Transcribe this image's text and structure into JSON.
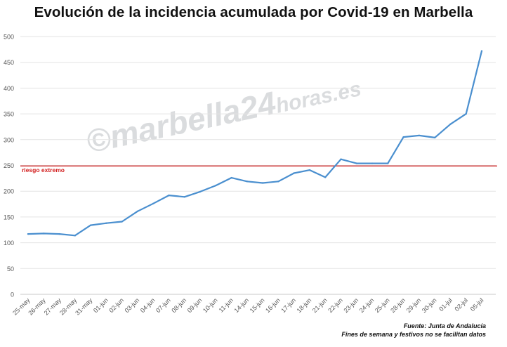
{
  "title": "Evolución de la incidencia acumulada por Covid-19 en Marbella",
  "watermark": {
    "main": "©marbella24",
    "sub": "horas.es"
  },
  "source": {
    "line1": "Fuente: Junta de Andalucía",
    "line2": "Fines de semana y festivos no se facilitan datos"
  },
  "colors": {
    "series": "#4a8fcf",
    "threshold": "#d11a1a",
    "grid": "#e3e3e3",
    "tick_text": "#555555"
  },
  "chart_data": {
    "type": "line",
    "title": "Evolución de la incidencia acumulada por Covid-19 en Marbella",
    "xlabel": "",
    "ylabel": "",
    "ylim": [
      0,
      500
    ],
    "yticks": [
      0,
      50,
      100,
      150,
      200,
      250,
      300,
      350,
      400,
      450,
      500
    ],
    "grid": true,
    "legend": "none",
    "categories": [
      "25-may",
      "26-may",
      "27-may",
      "28-may",
      "31-may",
      "01-jun",
      "02-jun",
      "03-jun",
      "04-jun",
      "07-jun",
      "08-jun",
      "09-jun",
      "10-jun",
      "11-jun",
      "14-jun",
      "15-jun",
      "16-jun",
      "17-jun",
      "18-jun",
      "21-jun",
      "22-jun",
      "23-jun",
      "24-jun",
      "25-jun",
      "28-jun",
      "29-jun",
      "30-jun",
      "01-jul",
      "02-jul",
      "05-jul"
    ],
    "series": [
      {
        "values": [
          117,
          118,
          117,
          114,
          134,
          138,
          141,
          161,
          176,
          192,
          189,
          199,
          211,
          226,
          219,
          216,
          219,
          235,
          241,
          227,
          262,
          254,
          254,
          254,
          305,
          308,
          304,
          330,
          350,
          472
        ]
      }
    ],
    "threshold": {
      "value": 249,
      "label": "riesgo extremo"
    }
  }
}
